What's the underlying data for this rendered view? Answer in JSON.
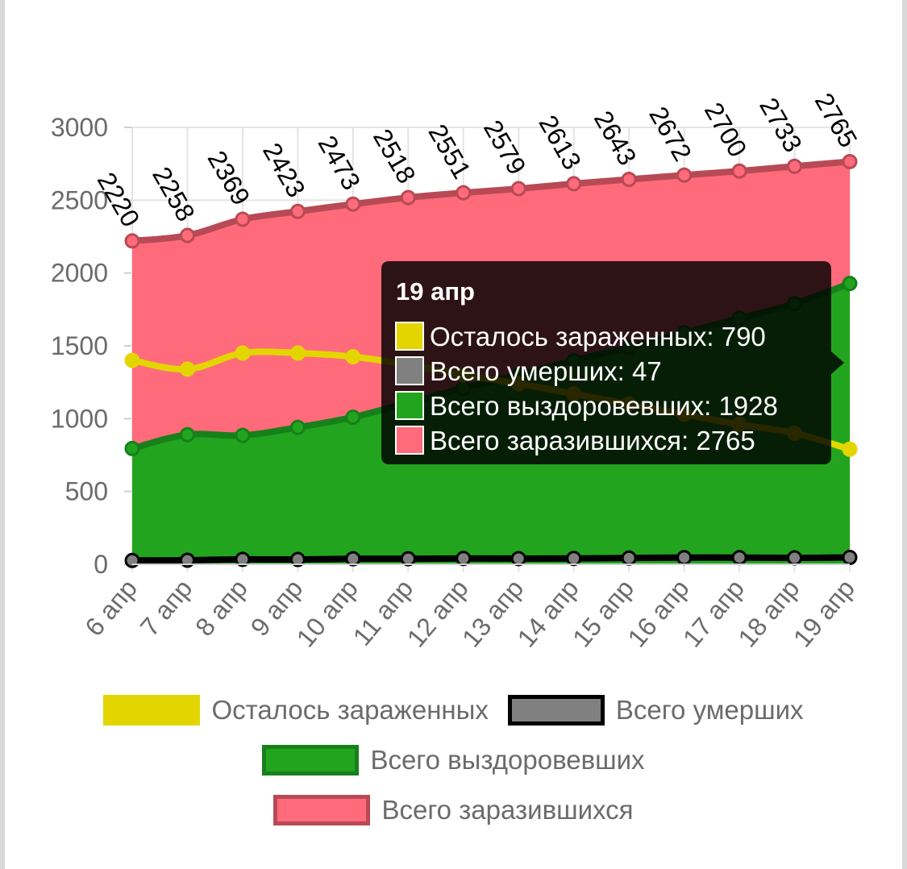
{
  "chart_data": {
    "type": "area",
    "title": "",
    "xlabel": "",
    "ylabel": "",
    "ylim": [
      0,
      3000
    ],
    "yticks": [
      0,
      500,
      1000,
      1500,
      2000,
      2500,
      3000
    ],
    "grid": true,
    "legend": "bottom",
    "categories": [
      "6 апр",
      "7 апр",
      "8 апр",
      "9 апр",
      "10 апр",
      "11 апр",
      "12 апр",
      "13 апр",
      "14 апр",
      "15 апр",
      "16 апр",
      "17 апр",
      "18 апр",
      "19 апр"
    ],
    "series": [
      {
        "name": "Всего заразившихся",
        "kind": "area",
        "color": "#ff6b7a",
        "border": "#b84a55",
        "values": [
          2220,
          2258,
          2369,
          2423,
          2473,
          2518,
          2551,
          2579,
          2613,
          2643,
          2672,
          2700,
          2733,
          2765
        ]
      },
      {
        "name": "Всего выздоровевших",
        "kind": "area",
        "color": "#22a41e",
        "border": "#17801a",
        "values": [
          795,
          890,
          885,
          940,
          1010,
          1110,
          1210,
          1300,
          1400,
          1490,
          1590,
          1690,
          1790,
          1928
        ]
      },
      {
        "name": "Осталось зараженных",
        "kind": "line",
        "color": "#e3d600",
        "border": "#e3d600",
        "values": [
          1400,
          1340,
          1450,
          1450,
          1425,
          1370,
          1300,
          1240,
          1170,
          1100,
          1030,
          960,
          900,
          790
        ]
      },
      {
        "name": "Всего умерших",
        "kind": "line",
        "color": "#808080",
        "border": "#000000",
        "values": [
          26,
          28,
          34,
          33,
          38,
          38,
          40,
          39,
          40,
          43,
          46,
          46,
          44,
          47
        ]
      }
    ],
    "data_labels": [
      "2220",
      "2258",
      "2369",
      "2423",
      "2473",
      "2518",
      "2551",
      "2579",
      "2613",
      "2643",
      "2672",
      "2700",
      "2733",
      "2765"
    ],
    "tooltip": {
      "title": "19 апр",
      "rows": [
        {
          "text": "Осталось зараженных: 790",
          "color": "#e3d600",
          "border": "#ffffff"
        },
        {
          "text": "Всего умерших: 47",
          "color": "#808080",
          "border": "#ffffff"
        },
        {
          "text": "Всего выздоровевших: 1928",
          "color": "#22a41e",
          "border": "#ffffff"
        },
        {
          "text": "Всего заразившихся: 2765",
          "color": "#ff6b7a",
          "border": "#ffffff"
        }
      ]
    },
    "legend_items": [
      {
        "row": 0,
        "label": "Осталось зараженных",
        "fill": "#e3d600",
        "border": "#e3d600"
      },
      {
        "row": 0,
        "label": "Всего умерших",
        "fill": "#808080",
        "border": "#000000"
      },
      {
        "row": 1,
        "label": "Всего выздоровевших",
        "fill": "#22a41e",
        "border": "#17801a"
      },
      {
        "row": 2,
        "label": "Всего заразившихся",
        "fill": "#ff6b7a",
        "border": "#b84a55"
      }
    ]
  }
}
